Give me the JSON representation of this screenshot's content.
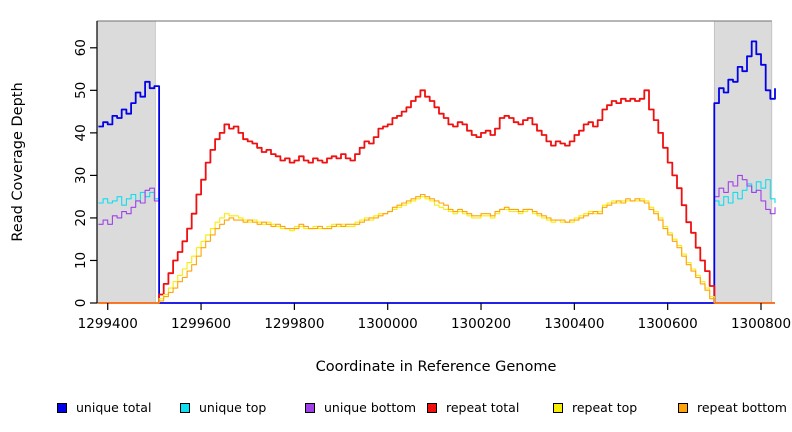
{
  "figure": {
    "x_axis": {
      "title": "Coordinate in Reference Genome",
      "tick_values": [
        1299400,
        1299600,
        1299800,
        1300000,
        1300200,
        1300400,
        1300600,
        1300800
      ],
      "tick_labels": [
        "1299400",
        "1299600",
        "1299800",
        "1300000",
        "1300200",
        "1300400",
        "1300600",
        "1300800"
      ]
    },
    "y_axis": {
      "title": "Read Coverage Depth",
      "tick_values": [
        0,
        10,
        20,
        30,
        40,
        50,
        60
      ],
      "tick_labels": [
        "0",
        "10",
        "20",
        "30",
        "40",
        "50",
        "60"
      ]
    },
    "masked_regions": {
      "fill_color": "#DBDBDB",
      "regions": [
        {
          "x_start": 1299377,
          "x_end": 1299502
        },
        {
          "x_start": 1300700,
          "x_end": 1300823
        }
      ]
    },
    "legend": {
      "items": [
        {
          "label": "unique total",
          "color": "#0202E8"
        },
        {
          "label": "unique top",
          "color": "#0EDEEE"
        },
        {
          "label": "unique bottom",
          "color": "#A040E8"
        },
        {
          "label": "repeat total",
          "color": "#F01010"
        },
        {
          "label": "repeat top",
          "color": "#F5EE0A"
        },
        {
          "label": "repeat bottom",
          "color": "#FFA408"
        }
      ]
    }
  },
  "chart_data": {
    "type": "line",
    "title": "",
    "xlabel": "Coordinate in Reference Genome",
    "ylabel": "Read Coverage Depth",
    "xlim": [
      1299377,
      1300830
    ],
    "ylim": [
      0,
      66.3
    ],
    "x_step": 10,
    "x_grid_start": 1299380,
    "x_grid_end": 1300830,
    "baseline": 0,
    "series": [
      {
        "name": "unique total",
        "color": "#0202E8",
        "line_width": 1.8,
        "segments": [
          {
            "x_start": 1299380,
            "values": [
              41.5,
              42.5,
              42,
              44,
              43.5,
              45.5,
              44.5,
              47,
              49.5,
              48.5,
              52,
              50.5,
              51
            ]
          },
          {
            "x_start": 1300700,
            "values": [
              47,
              50.5,
              49.5,
              52.5,
              52,
              55.5,
              54.5,
              58,
              61.5,
              58.5,
              56,
              50,
              48,
              50.5
            ]
          }
        ]
      },
      {
        "name": "unique top",
        "color": "#0EDEEE",
        "line_width": 1.1,
        "segments": [
          {
            "x_start": 1299380,
            "values": [
              23.5,
              24.5,
              23.5,
              24,
              25,
              23,
              24.5,
              25.5,
              24,
              26,
              25,
              26,
              24.5
            ]
          },
          {
            "x_start": 1300700,
            "values": [
              24,
              23,
              25,
              23.5,
              26,
              24.5,
              26.5,
              28,
              26,
              28.5,
              27,
              29,
              24.5,
              23.5
            ]
          }
        ]
      },
      {
        "name": "unique bottom",
        "color": "#A040E8",
        "line_width": 1.1,
        "segments": [
          {
            "x_start": 1299380,
            "values": [
              18.5,
              19.5,
              18.5,
              20.5,
              20,
              21.5,
              21,
              22.5,
              24,
              23.5,
              26.5,
              27,
              24
            ]
          },
          {
            "x_start": 1300700,
            "values": [
              25,
              27,
              26,
              28.5,
              27.5,
              30,
              29,
              27.5,
              26,
              26.5,
              24,
              22,
              21,
              22.5
            ]
          }
        ]
      },
      {
        "name": "repeat total",
        "color": "#F01010",
        "line_width": 1.8,
        "segments": [
          {
            "x_start": 1299500,
            "values": [
              0,
              2,
              4.5,
              7,
              10,
              12,
              14.5,
              17.5,
              21,
              25.5,
              29,
              33,
              36,
              38.5,
              40,
              42,
              41,
              41.5,
              40,
              38.5,
              38,
              37.5,
              36.5,
              35.5,
              36,
              35,
              34.5,
              33.5,
              34,
              33,
              33.5,
              34.5,
              33.5,
              33,
              34,
              33.5,
              33,
              34,
              34.5,
              34,
              35,
              34,
              33.5,
              35,
              36.5,
              38,
              37.5,
              39,
              41,
              41.5,
              42,
              43.5,
              44,
              45,
              46,
              47.5,
              48.5,
              50,
              48.5,
              47.5,
              46,
              44.5,
              43.5,
              42,
              41.5,
              42.5,
              42,
              40.5,
              39.5,
              39,
              40,
              40.5,
              39.5,
              41,
              43.5,
              44,
              43.5,
              42.5,
              42,
              43,
              43.5,
              42,
              40.5,
              39.5,
              38,
              37,
              38,
              37.5,
              37,
              38,
              39.5,
              40.5,
              42,
              42.5,
              41.5,
              43,
              45.5,
              46.5,
              47.5,
              47,
              48,
              47.5,
              48,
              47.5,
              48,
              50,
              45.5,
              43,
              40,
              36.5,
              33,
              30,
              27,
              23,
              19,
              16.5,
              13,
              10,
              7.5,
              4,
              0
            ]
          }
        ]
      },
      {
        "name": "repeat top",
        "color": "#F5EE0A",
        "line_width": 1.1,
        "segments": [
          {
            "x_start": 1299500,
            "values": [
              0,
              1,
              2,
              3.5,
              5,
              6.5,
              8,
              9.5,
              11,
              13,
              14.5,
              16,
              17.5,
              19,
              20,
              21,
              20.5,
              20.5,
              20,
              19.5,
              19,
              19.5,
              19,
              18.5,
              19,
              18.5,
              18,
              17.5,
              17.5,
              17,
              18,
              18,
              17.5,
              17.5,
              18,
              17.5,
              17.5,
              18,
              18.5,
              18,
              18.5,
              18,
              18,
              19,
              19.5,
              20,
              19.5,
              20.5,
              21,
              21,
              21.5,
              22,
              22.5,
              23,
              23.5,
              24,
              24.5,
              25,
              24.5,
              24,
              23,
              22.5,
              22,
              21.5,
              21,
              21.5,
              21,
              20.5,
              20,
              20,
              20.5,
              20.5,
              20,
              21,
              22,
              22,
              21.5,
              21.5,
              21,
              21.5,
              22,
              21,
              20.5,
              20,
              19.5,
              19,
              19.5,
              19,
              19,
              19,
              20,
              20.5,
              21,
              21.5,
              21,
              21.5,
              23,
              23.5,
              24,
              23.5,
              24,
              24,
              24,
              24,
              24.5,
              24,
              22.5,
              21.5,
              20,
              18,
              16.5,
              15,
              13.5,
              11.5,
              9.5,
              8,
              6.5,
              5,
              3.5,
              1.5,
              0
            ]
          }
        ]
      },
      {
        "name": "repeat bottom",
        "color": "#FFA408",
        "line_width": 1.1,
        "segments": [
          {
            "x_start": 1299500,
            "values": [
              0,
              0.5,
              1.5,
              2.5,
              3.5,
              5,
              6,
              7.5,
              9,
              11,
              13,
              14.5,
              16,
              17.5,
              18.5,
              19.5,
              20,
              19.5,
              19.5,
              19,
              19.5,
              19,
              18.5,
              19,
              18.5,
              18,
              18.5,
              18,
              17.5,
              17.5,
              17.5,
              18.5,
              18,
              17.5,
              17.5,
              18,
              17.5,
              17.5,
              18,
              18.5,
              18,
              18.5,
              18.5,
              18.5,
              19,
              19.5,
              20,
              20,
              20.5,
              21,
              21.5,
              22.5,
              23,
              23.5,
              24,
              24.5,
              25,
              25.5,
              25,
              24.5,
              24,
              23.5,
              23,
              22,
              21.5,
              22,
              21.5,
              21,
              20.5,
              20.5,
              21,
              21,
              20.5,
              21.5,
              22,
              22.5,
              22,
              22,
              21.5,
              22,
              22,
              21.5,
              21,
              20.5,
              20,
              19.5,
              19.5,
              19.5,
              19,
              19.5,
              19.5,
              20,
              20.5,
              21,
              21.5,
              21,
              22.5,
              23,
              23.5,
              24,
              23.5,
              24.5,
              24,
              24.5,
              24,
              23.5,
              22,
              21,
              19.5,
              17.5,
              16,
              14.5,
              13,
              11,
              9,
              7.5,
              6,
              4.5,
              3,
              1,
              0
            ]
          }
        ]
      }
    ],
    "legend_position": "bottom",
    "grid": false
  }
}
